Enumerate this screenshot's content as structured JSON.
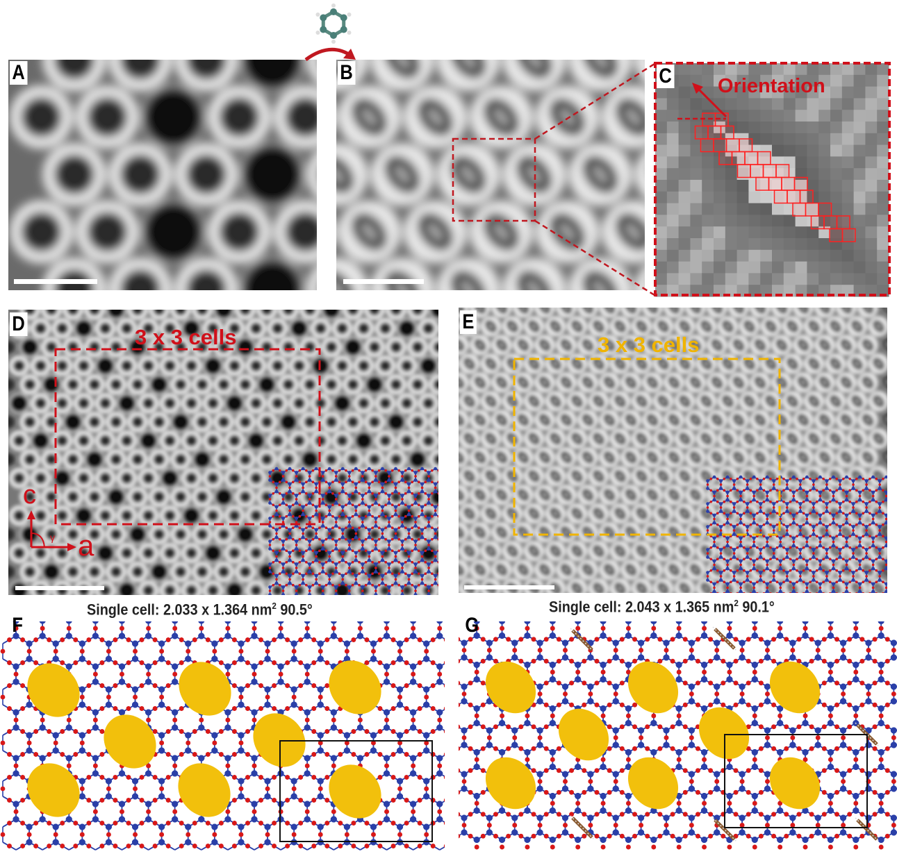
{
  "panels": {
    "A": {
      "label": "A"
    },
    "B": {
      "label": "B"
    },
    "C": {
      "label": "C",
      "annotation": "Orientation"
    },
    "D": {
      "label": "D",
      "box_label": "3 x 3 cells",
      "axis_c": "c",
      "axis_a": "a",
      "angle": "γ",
      "caption_prefix": "Single cell: 2.033 x 1.364 nm",
      "caption_sup": "2",
      "caption_suffix": " 90.5°"
    },
    "E": {
      "label": "E",
      "box_label": "3 x 3 cells",
      "caption_prefix": "Single cell: 2.043 x 1.365 nm",
      "caption_sup": "2",
      "caption_suffix": " 90.1°"
    },
    "F": {
      "label": "F"
    },
    "G": {
      "label": "G"
    }
  },
  "icons": {
    "molecule": "benzene-molecule-icon",
    "arrow": "curved-arrow-icon"
  },
  "colors": {
    "red": "#d0101a",
    "yellow": "#f0b400",
    "pore": "#f2c00c",
    "atom_blue": "#2a3fa8",
    "atom_red": "#d81818"
  }
}
